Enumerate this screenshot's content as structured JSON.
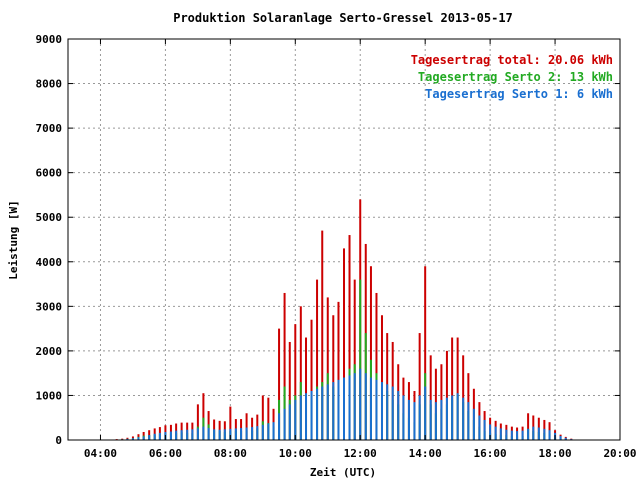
{
  "chart_data": {
    "type": "bar",
    "title": "Produktion Solaranlage Serto-Gressel 2013-05-17",
    "xlabel": "Zeit (UTC)",
    "ylabel": "Leistung [W]",
    "xlim": [
      3.0,
      20.0
    ],
    "ylim": [
      0,
      9000
    ],
    "x_ticks": [
      "04:00",
      "06:00",
      "08:00",
      "10:00",
      "12:00",
      "14:00",
      "16:00",
      "18:00",
      "20:00"
    ],
    "x_tick_hours": [
      4,
      6,
      8,
      10,
      12,
      14,
      16,
      18,
      20
    ],
    "y_ticks": [
      0,
      1000,
      2000,
      3000,
      4000,
      5000,
      6000,
      7000,
      8000,
      9000
    ],
    "grid": true,
    "legend_position": "top-right",
    "stacked": true,
    "legend": [
      {
        "label": "Tagesertrag total: 20.06 kWh",
        "color": "#cc0000"
      },
      {
        "label": "Tagesertrag Serto 2: 13 kWh",
        "color": "#22aa22"
      },
      {
        "label": "Tagesertrag Serto 1: 6 kWh",
        "color": "#1a6fd0"
      }
    ],
    "series": [
      {
        "name": "Serto 1",
        "color": "#1a6fd0",
        "points": [
          [
            4.5,
            10
          ],
          [
            4.67,
            15
          ],
          [
            4.83,
            25
          ],
          [
            5.0,
            40
          ],
          [
            5.17,
            60
          ],
          [
            5.33,
            80
          ],
          [
            5.5,
            110
          ],
          [
            5.67,
            140
          ],
          [
            5.83,
            160
          ],
          [
            6.0,
            180
          ],
          [
            6.17,
            190
          ],
          [
            6.33,
            210
          ],
          [
            6.5,
            220
          ],
          [
            6.67,
            230
          ],
          [
            6.83,
            240
          ],
          [
            7.0,
            260
          ],
          [
            7.17,
            300
          ],
          [
            7.33,
            270
          ],
          [
            7.5,
            240
          ],
          [
            7.67,
            230
          ],
          [
            7.83,
            240
          ],
          [
            8.0,
            250
          ],
          [
            8.17,
            260
          ],
          [
            8.33,
            270
          ],
          [
            8.5,
            280
          ],
          [
            8.67,
            290
          ],
          [
            8.83,
            310
          ],
          [
            9.0,
            340
          ],
          [
            9.17,
            370
          ],
          [
            9.33,
            400
          ],
          [
            9.5,
            600
          ],
          [
            9.67,
            700
          ],
          [
            9.83,
            800
          ],
          [
            10.0,
            900
          ],
          [
            10.17,
            1000
          ],
          [
            10.33,
            1050
          ],
          [
            10.5,
            1100
          ],
          [
            10.67,
            1150
          ],
          [
            10.83,
            1200
          ],
          [
            11.0,
            1250
          ],
          [
            11.17,
            1300
          ],
          [
            11.33,
            1350
          ],
          [
            11.5,
            1400
          ],
          [
            11.67,
            1450
          ],
          [
            11.83,
            1500
          ],
          [
            12.0,
            1600
          ],
          [
            12.17,
            1500
          ],
          [
            12.33,
            1400
          ],
          [
            12.5,
            1350
          ],
          [
            12.67,
            1300
          ],
          [
            12.83,
            1250
          ],
          [
            13.0,
            1200
          ],
          [
            13.17,
            1100
          ],
          [
            13.33,
            1000
          ],
          [
            13.5,
            900
          ],
          [
            13.67,
            850
          ],
          [
            13.83,
            1000
          ],
          [
            14.0,
            1200
          ],
          [
            14.17,
            900
          ],
          [
            14.33,
            850
          ],
          [
            14.5,
            900
          ],
          [
            14.67,
            950
          ],
          [
            14.83,
            1000
          ],
          [
            15.0,
            1050
          ],
          [
            15.17,
            950
          ],
          [
            15.33,
            850
          ],
          [
            15.5,
            700
          ],
          [
            15.67,
            550
          ],
          [
            15.83,
            450
          ],
          [
            16.0,
            350
          ],
          [
            16.17,
            300
          ],
          [
            16.33,
            260
          ],
          [
            16.5,
            230
          ],
          [
            16.67,
            210
          ],
          [
            16.83,
            200
          ],
          [
            17.0,
            210
          ],
          [
            17.17,
            250
          ],
          [
            17.33,
            300
          ],
          [
            17.5,
            280
          ],
          [
            17.67,
            250
          ],
          [
            17.83,
            220
          ],
          [
            18.0,
            160
          ],
          [
            18.17,
            90
          ],
          [
            18.33,
            50
          ],
          [
            18.5,
            20
          ]
        ]
      },
      {
        "name": "Serto 2",
        "color": "#22aa22",
        "points": [
          [
            4.5,
            10
          ],
          [
            4.67,
            15
          ],
          [
            4.83,
            25
          ],
          [
            5.0,
            40
          ],
          [
            5.17,
            70
          ],
          [
            5.33,
            100
          ],
          [
            5.5,
            110
          ],
          [
            5.67,
            120
          ],
          [
            5.83,
            130
          ],
          [
            6.0,
            150
          ],
          [
            6.17,
            150
          ],
          [
            6.33,
            160
          ],
          [
            6.5,
            170
          ],
          [
            6.67,
            160
          ],
          [
            6.83,
            150
          ],
          [
            7.0,
            300
          ],
          [
            7.17,
            500
          ],
          [
            7.33,
            350
          ],
          [
            7.5,
            220
          ],
          [
            7.67,
            200
          ],
          [
            7.83,
            180
          ],
          [
            8.0,
            200
          ],
          [
            8.17,
            210
          ],
          [
            8.33,
            200
          ],
          [
            8.5,
            220
          ],
          [
            8.67,
            210
          ],
          [
            8.83,
            260
          ],
          [
            9.0,
            420
          ],
          [
            9.17,
            380
          ],
          [
            9.33,
            300
          ],
          [
            9.5,
            900
          ],
          [
            9.67,
            1200
          ],
          [
            9.83,
            900
          ],
          [
            10.0,
            1000
          ],
          [
            10.17,
            1300
          ],
          [
            10.33,
            900
          ],
          [
            10.5,
            1000
          ],
          [
            10.67,
            1200
          ],
          [
            10.83,
            1300
          ],
          [
            11.0,
            1500
          ],
          [
            11.17,
            1200
          ],
          [
            11.33,
            1000
          ],
          [
            11.5,
            1400
          ],
          [
            11.67,
            1600
          ],
          [
            11.83,
            1700
          ],
          [
            12.0,
            3600
          ],
          [
            12.17,
            2400
          ],
          [
            12.33,
            1800
          ],
          [
            12.5,
            1500
          ],
          [
            12.67,
            1200
          ],
          [
            12.83,
            1100
          ],
          [
            13.0,
            900
          ],
          [
            13.17,
            800
          ],
          [
            13.33,
            600
          ],
          [
            13.5,
            500
          ],
          [
            13.67,
            400
          ],
          [
            13.83,
            800
          ],
          [
            14.0,
            1500
          ],
          [
            14.17,
            800
          ],
          [
            14.33,
            600
          ],
          [
            14.5,
            700
          ],
          [
            14.67,
            800
          ],
          [
            14.83,
            900
          ],
          [
            15.0,
            1000
          ],
          [
            15.17,
            850
          ],
          [
            15.33,
            650
          ],
          [
            15.5,
            450
          ],
          [
            15.67,
            300
          ],
          [
            15.83,
            200
          ],
          [
            16.0,
            150
          ],
          [
            16.17,
            130
          ],
          [
            16.33,
            110
          ],
          [
            16.5,
            110
          ],
          [
            16.67,
            90
          ],
          [
            16.83,
            80
          ],
          [
            17.0,
            90
          ],
          [
            17.17,
            250
          ],
          [
            17.33,
            200
          ],
          [
            17.5,
            180
          ],
          [
            17.67,
            160
          ],
          [
            17.83,
            140
          ],
          [
            18.0,
            60
          ],
          [
            18.17,
            30
          ],
          [
            18.33,
            20
          ],
          [
            18.5,
            10
          ]
        ]
      },
      {
        "name": "total",
        "color": "#cc0000",
        "points": [
          [
            4.5,
            20
          ],
          [
            4.67,
            30
          ],
          [
            4.83,
            50
          ],
          [
            5.0,
            80
          ],
          [
            5.17,
            130
          ],
          [
            5.33,
            180
          ],
          [
            5.5,
            220
          ],
          [
            5.67,
            260
          ],
          [
            5.83,
            290
          ],
          [
            6.0,
            330
          ],
          [
            6.17,
            340
          ],
          [
            6.33,
            370
          ],
          [
            6.5,
            390
          ],
          [
            6.67,
            390
          ],
          [
            6.83,
            390
          ],
          [
            7.0,
            800
          ],
          [
            7.17,
            1050
          ],
          [
            7.33,
            650
          ],
          [
            7.5,
            460
          ],
          [
            7.67,
            430
          ],
          [
            7.83,
            420
          ],
          [
            8.0,
            750
          ],
          [
            8.17,
            470
          ],
          [
            8.33,
            470
          ],
          [
            8.5,
            600
          ],
          [
            8.67,
            500
          ],
          [
            8.83,
            570
          ],
          [
            9.0,
            1000
          ],
          [
            9.17,
            950
          ],
          [
            9.33,
            700
          ],
          [
            9.5,
            2500
          ],
          [
            9.67,
            3300
          ],
          [
            9.83,
            2200
          ],
          [
            10.0,
            2600
          ],
          [
            10.17,
            3000
          ],
          [
            10.33,
            2300
          ],
          [
            10.5,
            2700
          ],
          [
            10.67,
            3600
          ],
          [
            10.83,
            4700
          ],
          [
            11.0,
            3200
          ],
          [
            11.17,
            2800
          ],
          [
            11.33,
            3100
          ],
          [
            11.5,
            4300
          ],
          [
            11.67,
            4600
          ],
          [
            11.83,
            3600
          ],
          [
            12.0,
            5400
          ],
          [
            12.17,
            4400
          ],
          [
            12.33,
            3900
          ],
          [
            12.5,
            3300
          ],
          [
            12.67,
            2800
          ],
          [
            12.83,
            2400
          ],
          [
            13.0,
            2200
          ],
          [
            13.17,
            1700
          ],
          [
            13.33,
            1400
          ],
          [
            13.5,
            1300
          ],
          [
            13.67,
            1100
          ],
          [
            13.83,
            2400
          ],
          [
            14.0,
            3900
          ],
          [
            14.17,
            1900
          ],
          [
            14.33,
            1600
          ],
          [
            14.5,
            1700
          ],
          [
            14.67,
            2000
          ],
          [
            14.83,
            2300
          ],
          [
            15.0,
            2300
          ],
          [
            15.17,
            1900
          ],
          [
            15.33,
            1500
          ],
          [
            15.5,
            1150
          ],
          [
            15.67,
            850
          ],
          [
            15.83,
            650
          ],
          [
            16.0,
            500
          ],
          [
            16.17,
            430
          ],
          [
            16.33,
            370
          ],
          [
            16.5,
            340
          ],
          [
            16.67,
            300
          ],
          [
            16.83,
            280
          ],
          [
            17.0,
            300
          ],
          [
            17.17,
            600
          ],
          [
            17.33,
            550
          ],
          [
            17.5,
            500
          ],
          [
            17.67,
            450
          ],
          [
            17.83,
            400
          ],
          [
            18.0,
            220
          ],
          [
            18.17,
            120
          ],
          [
            18.33,
            70
          ],
          [
            18.5,
            30
          ]
        ]
      }
    ]
  }
}
